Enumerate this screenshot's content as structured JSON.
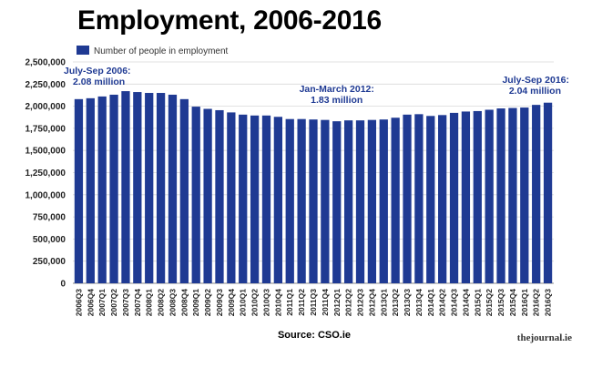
{
  "chart_data": {
    "type": "bar",
    "title": "Employment, 2006-2016",
    "xlabel": "",
    "ylabel": "",
    "legend": {
      "label": "Number of people in employment",
      "placement": "top-left"
    },
    "series": [
      {
        "name": "Number of people in employment",
        "color": "#1f3a93"
      }
    ],
    "ylim": [
      0,
      2500000
    ],
    "yticks": [
      0,
      250000,
      500000,
      750000,
      1000000,
      1250000,
      1500000,
      1750000,
      2000000,
      2250000,
      2500000
    ],
    "ytick_labels": [
      "0",
      "250,000",
      "500,000",
      "750,000",
      "1,000,000",
      "1,250,000",
      "1,500,000",
      "1,750,000",
      "2,000,000",
      "2,250,000",
      "2,500,000"
    ],
    "grid": "horizontal",
    "categories": [
      "2006Q3",
      "2006Q4",
      "2007Q1",
      "2007Q2",
      "2007Q3",
      "2007Q4",
      "2008Q1",
      "2008Q2",
      "2008Q3",
      "2008Q4",
      "2009Q1",
      "2009Q2",
      "2009Q3",
      "2009Q4",
      "2010Q1",
      "2010Q2",
      "2010Q3",
      "2010Q4",
      "2011Q1",
      "2011Q2",
      "2011Q3",
      "2011Q4",
      "2012Q1",
      "2012Q2",
      "2012Q3",
      "2012Q4",
      "2013Q1",
      "2013Q2",
      "2013Q3",
      "2013Q4",
      "2014Q1",
      "2014Q2",
      "2014Q3",
      "2014Q4",
      "2015Q1",
      "2015Q2",
      "2015Q3",
      "2015Q4",
      "2016Q1",
      "2016Q2",
      "2016Q3"
    ],
    "values": [
      2080000,
      2090000,
      2110000,
      2130000,
      2170000,
      2160000,
      2150000,
      2150000,
      2130000,
      2080000,
      1995000,
      1970000,
      1955000,
      1930000,
      1905000,
      1895000,
      1895000,
      1880000,
      1855000,
      1855000,
      1850000,
      1845000,
      1830000,
      1840000,
      1840000,
      1845000,
      1850000,
      1870000,
      1905000,
      1910000,
      1890000,
      1900000,
      1925000,
      1940000,
      1945000,
      1960000,
      1975000,
      1980000,
      1985000,
      2015000,
      2040000
    ],
    "annotations": [
      {
        "lines": [
          "July-Sep 2006:",
          "2.08 million"
        ],
        "category": "2006Q3",
        "align": "left"
      },
      {
        "lines": [
          "Jan-March 2012:",
          "1.83 million"
        ],
        "category": "2012Q1",
        "align": "center"
      },
      {
        "lines": [
          "July-Sep 2016:",
          "2.04 million"
        ],
        "category": "2016Q3",
        "align": "right"
      }
    ],
    "source": "Source: CSO.ie"
  },
  "branding": {
    "logo_text": "thejournal.ie"
  }
}
